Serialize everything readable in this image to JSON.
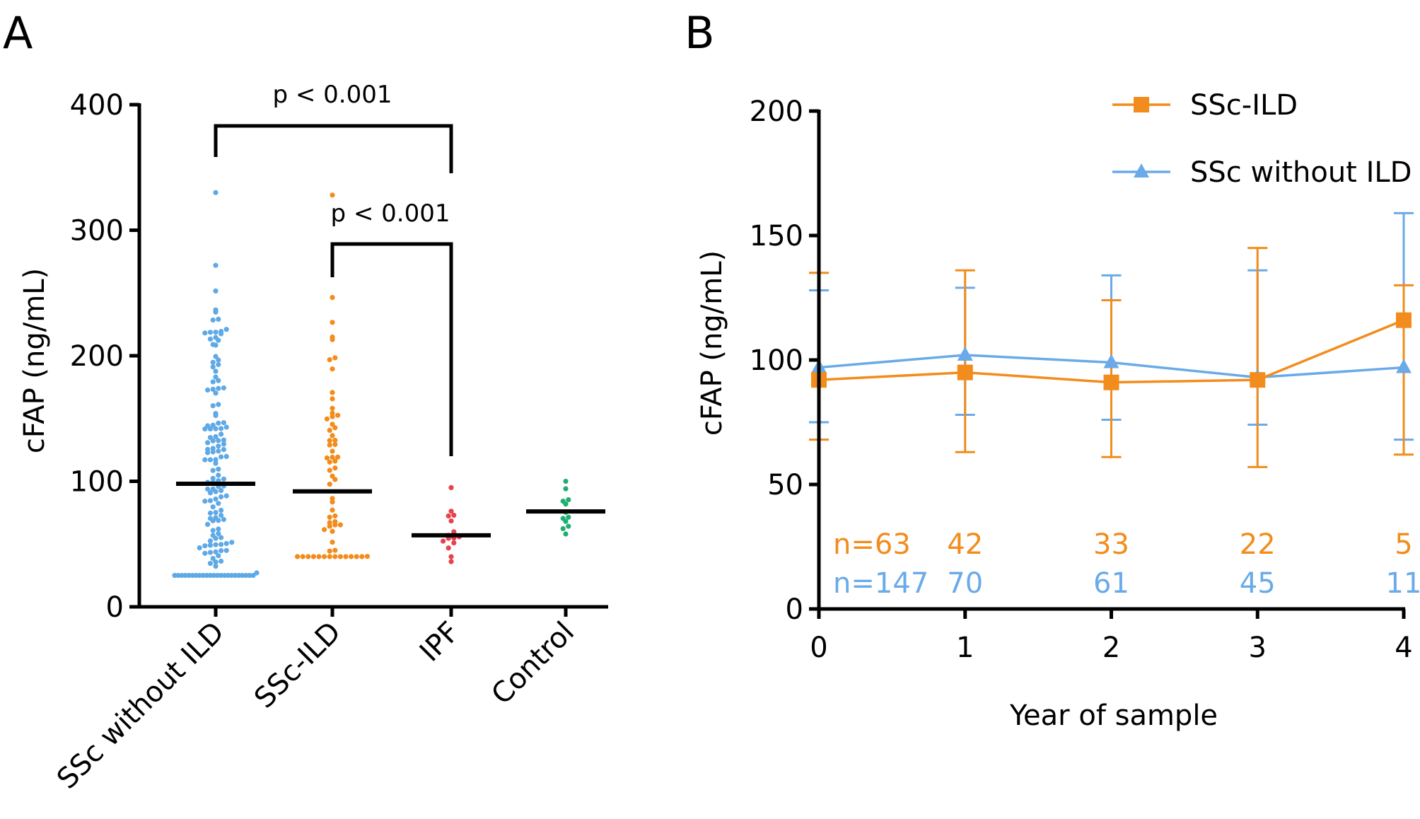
{
  "chart_data": [
    {
      "panel": "A",
      "type": "scatter",
      "subtype": "dot-strip with median lines",
      "ylabel": "cFAP (ng/mL)",
      "ylim": [
        0,
        400
      ],
      "yticks": [
        "0",
        "100",
        "200",
        "300",
        "400"
      ],
      "categories": [
        "SSc without ILD",
        "SSc-ILD",
        "IPF",
        "Control"
      ],
      "colors": [
        "#5ea9e6",
        "#f28c1c",
        "#e8424c",
        "#1fae72"
      ],
      "medians": [
        98,
        92,
        57,
        76
      ],
      "ranges": [
        [
          25,
          330
        ],
        [
          40,
          328
        ],
        [
          36,
          95
        ],
        [
          58,
          100
        ]
      ],
      "counts": [
        147,
        63,
        15,
        12
      ],
      "comparisons": [
        {
          "from": "SSc without ILD",
          "to": "IPF",
          "label": "p < 0.001"
        },
        {
          "from": "SSc-ILD",
          "to": "IPF",
          "label": "p < 0.001"
        }
      ]
    },
    {
      "panel": "B",
      "type": "line",
      "xlabel": "Year of sample",
      "ylabel": "cFAP (ng/mL)",
      "x": [
        0,
        1,
        2,
        3,
        4
      ],
      "xticks": [
        "0",
        "1",
        "2",
        "3",
        "4"
      ],
      "ylim": [
        0,
        200
      ],
      "yticks": [
        "0",
        "50",
        "100",
        "150",
        "200"
      ],
      "legend_position": "top-right",
      "series": [
        {
          "name": "SSc-ILD",
          "color": "#f28c1c",
          "marker": "square",
          "values": [
            92,
            95,
            91,
            92,
            116
          ],
          "err_low": [
            68,
            63,
            61,
            57,
            62
          ],
          "err_high": [
            135,
            136,
            124,
            145,
            130
          ],
          "n_labels": [
            "n=63",
            "42",
            "33",
            "22",
            "5"
          ]
        },
        {
          "name": "SSc without ILD",
          "color": "#6aaae8",
          "marker": "triangle",
          "values": [
            97,
            102,
            99,
            93,
            97
          ],
          "err_low": [
            75,
            78,
            76,
            74,
            68
          ],
          "err_high": [
            128,
            129,
            134,
            136,
            159
          ],
          "n_labels": [
            "n=147",
            "70",
            "61",
            "45",
            "11"
          ]
        }
      ]
    }
  ]
}
